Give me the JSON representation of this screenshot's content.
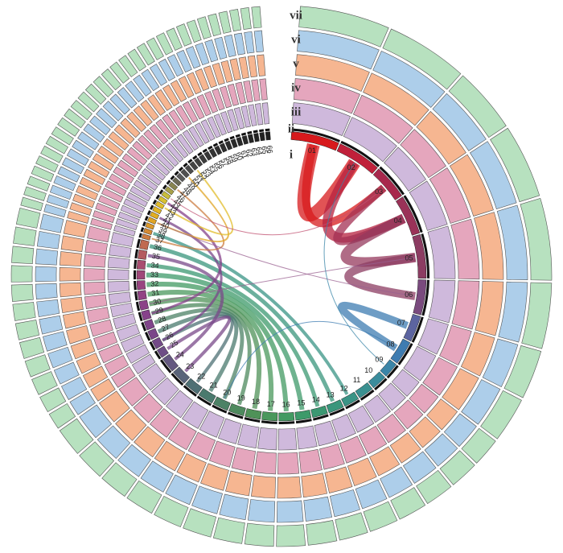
{
  "chart_data": {
    "type": "circos",
    "chromosomes": [
      {
        "name": "01",
        "length": 22,
        "color": "#d7191c"
      },
      {
        "name": "02",
        "length": 20,
        "color": "#c0203a"
      },
      {
        "name": "03",
        "length": 16,
        "color": "#a8284c"
      },
      {
        "name": "04",
        "length": 18,
        "color": "#9a3258"
      },
      {
        "name": "05",
        "length": 20,
        "color": "#8c3c62"
      },
      {
        "name": "06",
        "length": 16,
        "color": "#7a4a7e"
      },
      {
        "name": "07",
        "length": 12,
        "color": "#5c64a0"
      },
      {
        "name": "08",
        "length": 11,
        "color": "#3e7cb1"
      },
      {
        "name": "09",
        "length": 7,
        "color": "#3b85a8"
      },
      {
        "name": "10",
        "length": 7,
        "color": "#3a8c9c"
      },
      {
        "name": "11",
        "length": 7,
        "color": "#3a9090"
      },
      {
        "name": "12",
        "length": 7,
        "color": "#3a9486"
      },
      {
        "name": "13",
        "length": 7,
        "color": "#3a967c"
      },
      {
        "name": "14",
        "length": 7,
        "color": "#3b9872"
      },
      {
        "name": "15",
        "length": 7,
        "color": "#3d9a6a"
      },
      {
        "name": "16",
        "length": 7,
        "color": "#429a62"
      },
      {
        "name": "17",
        "length": 7,
        "color": "#4a985c"
      },
      {
        "name": "18",
        "length": 7,
        "color": "#4f9258"
      },
      {
        "name": "19",
        "length": 7,
        "color": "#4e8a5e"
      },
      {
        "name": "20",
        "length": 7,
        "color": "#4c8266"
      },
      {
        "name": "21",
        "length": 7,
        "color": "#4a7a6e"
      },
      {
        "name": "22",
        "length": 7,
        "color": "#4e7074"
      },
      {
        "name": "23",
        "length": 7,
        "color": "#5a647a"
      },
      {
        "name": "24",
        "length": 7,
        "color": "#645880"
      },
      {
        "name": "25",
        "length": 4,
        "color": "#6e4e86"
      },
      {
        "name": "26",
        "length": 4,
        "color": "#744a88"
      },
      {
        "name": "27",
        "length": 4,
        "color": "#7a4689"
      },
      {
        "name": "28",
        "length": 4,
        "color": "#80448a"
      },
      {
        "name": "29",
        "length": 4,
        "color": "#86428a"
      },
      {
        "name": "30",
        "length": 4,
        "color": "#8c4288"
      },
      {
        "name": "31",
        "length": 4,
        "color": "#924284"
      },
      {
        "name": "32",
        "length": 4,
        "color": "#984480"
      },
      {
        "name": "33",
        "length": 4,
        "color": "#a0487a"
      },
      {
        "name": "34",
        "length": 4,
        "color": "#a84e70"
      },
      {
        "name": "35",
        "length": 4,
        "color": "#b45a60"
      },
      {
        "name": "36",
        "length": 4,
        "color": "#c06a50"
      },
      {
        "name": "37",
        "length": 2,
        "color": "#cc7c40"
      },
      {
        "name": "38",
        "length": 2,
        "color": "#d48a34"
      },
      {
        "name": "39",
        "length": 2,
        "color": "#dc982a"
      },
      {
        "name": "40",
        "length": 2,
        "color": "#e0a424"
      },
      {
        "name": "41",
        "length": 2,
        "color": "#e2ae22"
      },
      {
        "name": "42",
        "length": 2,
        "color": "#e4b624"
      },
      {
        "name": "43",
        "length": 2,
        "color": "#e2bc2a"
      },
      {
        "name": "44",
        "length": 2,
        "color": "#d8c032"
      },
      {
        "name": "45",
        "length": 2,
        "color": "#c8be3c"
      },
      {
        "name": "46",
        "length": 2,
        "color": "#a8a048"
      },
      {
        "name": "47",
        "length": 2,
        "color": "#888450"
      },
      {
        "name": "48",
        "length": 2,
        "color": "#6c6a56"
      },
      {
        "name": "49",
        "length": 2,
        "color": "#5a5a5a"
      },
      {
        "name": "50",
        "length": 2,
        "color": "#505050"
      },
      {
        "name": "51",
        "length": 2,
        "color": "#4a4a4a"
      },
      {
        "name": "52",
        "length": 2,
        "color": "#444"
      },
      {
        "name": "53",
        "length": 2,
        "color": "#404040"
      },
      {
        "name": "54",
        "length": 2,
        "color": "#3c3c3c"
      },
      {
        "name": "55",
        "length": 2,
        "color": "#383838"
      },
      {
        "name": "56",
        "length": 2,
        "color": "#343434"
      },
      {
        "name": "57",
        "length": 2,
        "color": "#303030"
      },
      {
        "name": "58",
        "length": 2,
        "color": "#2e2e2e"
      },
      {
        "name": "59",
        "length": 2,
        "color": "#2c2c2c"
      },
      {
        "name": "60",
        "length": 2,
        "color": "#2a2a2a"
      },
      {
        "name": "61",
        "length": 2,
        "color": "#282828"
      },
      {
        "name": "62",
        "length": 2,
        "color": "#262626"
      },
      {
        "name": "63",
        "length": 2,
        "color": "#242424"
      },
      {
        "name": "64",
        "length": 2,
        "color": "#222"
      },
      {
        "name": "65",
        "length": 2,
        "color": "#202020"
      },
      {
        "name": "66",
        "length": 2,
        "color": "#1e1e1e"
      }
    ],
    "tracks": [
      {
        "label": "iii",
        "color": "#a77fc0"
      },
      {
        "label": "iv",
        "color": "#cf5c86"
      },
      {
        "label": "v",
        "color": "#ee7a36"
      },
      {
        "label": "vi",
        "color": "#6aa6d8"
      },
      {
        "label": "vii",
        "color": "#7cc88a"
      }
    ],
    "ring_labels": [
      "i",
      "ii"
    ],
    "links": [
      {
        "from": "01",
        "to": "02",
        "width": 16,
        "color": "#d7191c"
      },
      {
        "from": "01",
        "to": "03",
        "width": 10,
        "color": "#d7191c"
      },
      {
        "from": "02",
        "to": "04",
        "width": 12,
        "color": "#b5223f"
      },
      {
        "from": "03",
        "to": "04",
        "width": 10,
        "color": "#a33053"
      },
      {
        "from": "04",
        "to": "05",
        "width": 12,
        "color": "#963a5e"
      },
      {
        "from": "05",
        "to": "06",
        "width": 10,
        "color": "#8c3c62"
      },
      {
        "from": "07",
        "to": "08",
        "width": 9,
        "color": "#3e7cb1"
      },
      {
        "from": "12",
        "to": "38",
        "width": 4,
        "color": "#3a9486"
      },
      {
        "from": "13",
        "to": "36",
        "width": 5,
        "color": "#3a967c"
      },
      {
        "from": "14",
        "to": "34",
        "width": 5,
        "color": "#3b9872"
      },
      {
        "from": "15",
        "to": "33",
        "width": 6,
        "color": "#3d9a6a"
      },
      {
        "from": "16",
        "to": "32",
        "width": 6,
        "color": "#429a62"
      },
      {
        "from": "17",
        "to": "31",
        "width": 6,
        "color": "#4a985c"
      },
      {
        "from": "18",
        "to": "30",
        "width": 6,
        "color": "#4f9258"
      },
      {
        "from": "19",
        "to": "29",
        "width": 5,
        "color": "#4e8a5e"
      },
      {
        "from": "20",
        "to": "28",
        "width": 5,
        "color": "#4c8266"
      },
      {
        "from": "21",
        "to": "27",
        "width": 5,
        "color": "#4a7a6e"
      },
      {
        "from": "22",
        "to": "26",
        "width": 4,
        "color": "#4e7074"
      },
      {
        "from": "23",
        "to": "25",
        "width": 4,
        "color": "#7a4a8a"
      },
      {
        "from": "24",
        "to": "35",
        "width": 4,
        "color": "#7a4a8a"
      },
      {
        "from": "26",
        "to": "41",
        "width": 3,
        "color": "#7a4689"
      },
      {
        "from": "29",
        "to": "44",
        "width": 3,
        "color": "#86428a"
      },
      {
        "from": "37",
        "to": "47",
        "width": 2,
        "color": "#cc7c40"
      },
      {
        "from": "40",
        "to": "50",
        "width": 2,
        "color": "#e0a424"
      },
      {
        "from": "43",
        "to": "52",
        "width": 2,
        "color": "#e2bc2a"
      },
      {
        "from": "06",
        "to": "40",
        "width": 1,
        "color": "#9a6090"
      },
      {
        "from": "05",
        "to": "30",
        "width": 1,
        "color": "#9a6090"
      },
      {
        "from": "03",
        "to": "45",
        "width": 1,
        "color": "#c05070"
      },
      {
        "from": "08",
        "to": "20",
        "width": 1,
        "color": "#3e7cb1"
      },
      {
        "from": "09",
        "to": "02",
        "width": 1,
        "color": "#3a85a8"
      }
    ]
  }
}
